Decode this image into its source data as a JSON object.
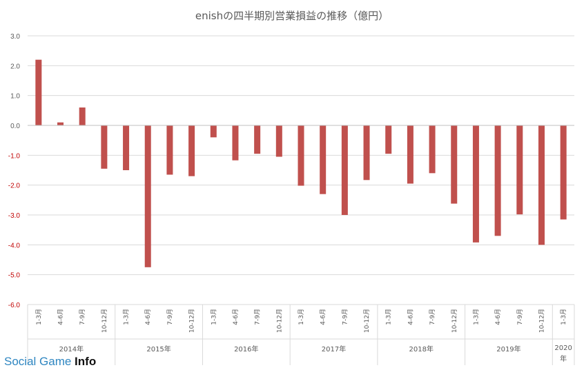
{
  "chart_data": {
    "type": "bar",
    "title": "enishの四半期別営業損益の推移（億円）",
    "ylim": [
      -6.0,
      3.0
    ],
    "yticks": [
      "3.0",
      "2.0",
      "1.0",
      "0.0",
      "-1.0",
      "-2.0",
      "-3.0",
      "-4.0",
      "-5.0",
      "-6.0"
    ],
    "grid": true,
    "legend": "none",
    "categories": [
      "1-3月",
      "4-6月",
      "7-9月",
      "10-12月",
      "1-3月",
      "4-6月",
      "7-9月",
      "10-12月",
      "1-3月",
      "4-6月",
      "7-9月",
      "10-12月",
      "1-3月",
      "4-6月",
      "7-9月",
      "10-12月",
      "1-3月",
      "4-6月",
      "7-9月",
      "10-12月",
      "1-3月",
      "4-6月",
      "7-9月",
      "10-12月",
      "1-3月"
    ],
    "years": [
      {
        "label": "2014年",
        "count": 4
      },
      {
        "label": "2015年",
        "count": 4
      },
      {
        "label": "2016年",
        "count": 4
      },
      {
        "label": "2017年",
        "count": 4
      },
      {
        "label": "2018年",
        "count": 4
      },
      {
        "label": "2019年",
        "count": 4
      },
      {
        "label": "2020年",
        "count": 1
      }
    ],
    "series": [
      {
        "values": [
          2.2,
          0.1,
          0.6,
          -1.45,
          -1.5,
          -4.75,
          -1.65,
          -1.7,
          -0.4,
          -1.17,
          -0.95,
          -1.05,
          -2.02,
          -2.3,
          -3.0,
          -1.83,
          -0.95,
          -1.95,
          -1.6,
          -2.62,
          -3.92,
          -3.7,
          -2.98,
          -4.0,
          -3.15
        ],
        "color": "#c0504d"
      }
    ],
    "colors": {
      "bar": "#c0504d",
      "negative_tick": "#c00000",
      "axis_text": "#595959",
      "grid": "#d9d9d9"
    }
  },
  "watermark": {
    "part1": "Social Game ",
    "part2": "Info",
    "color1": "#2e86c1",
    "color2": "#111111"
  }
}
